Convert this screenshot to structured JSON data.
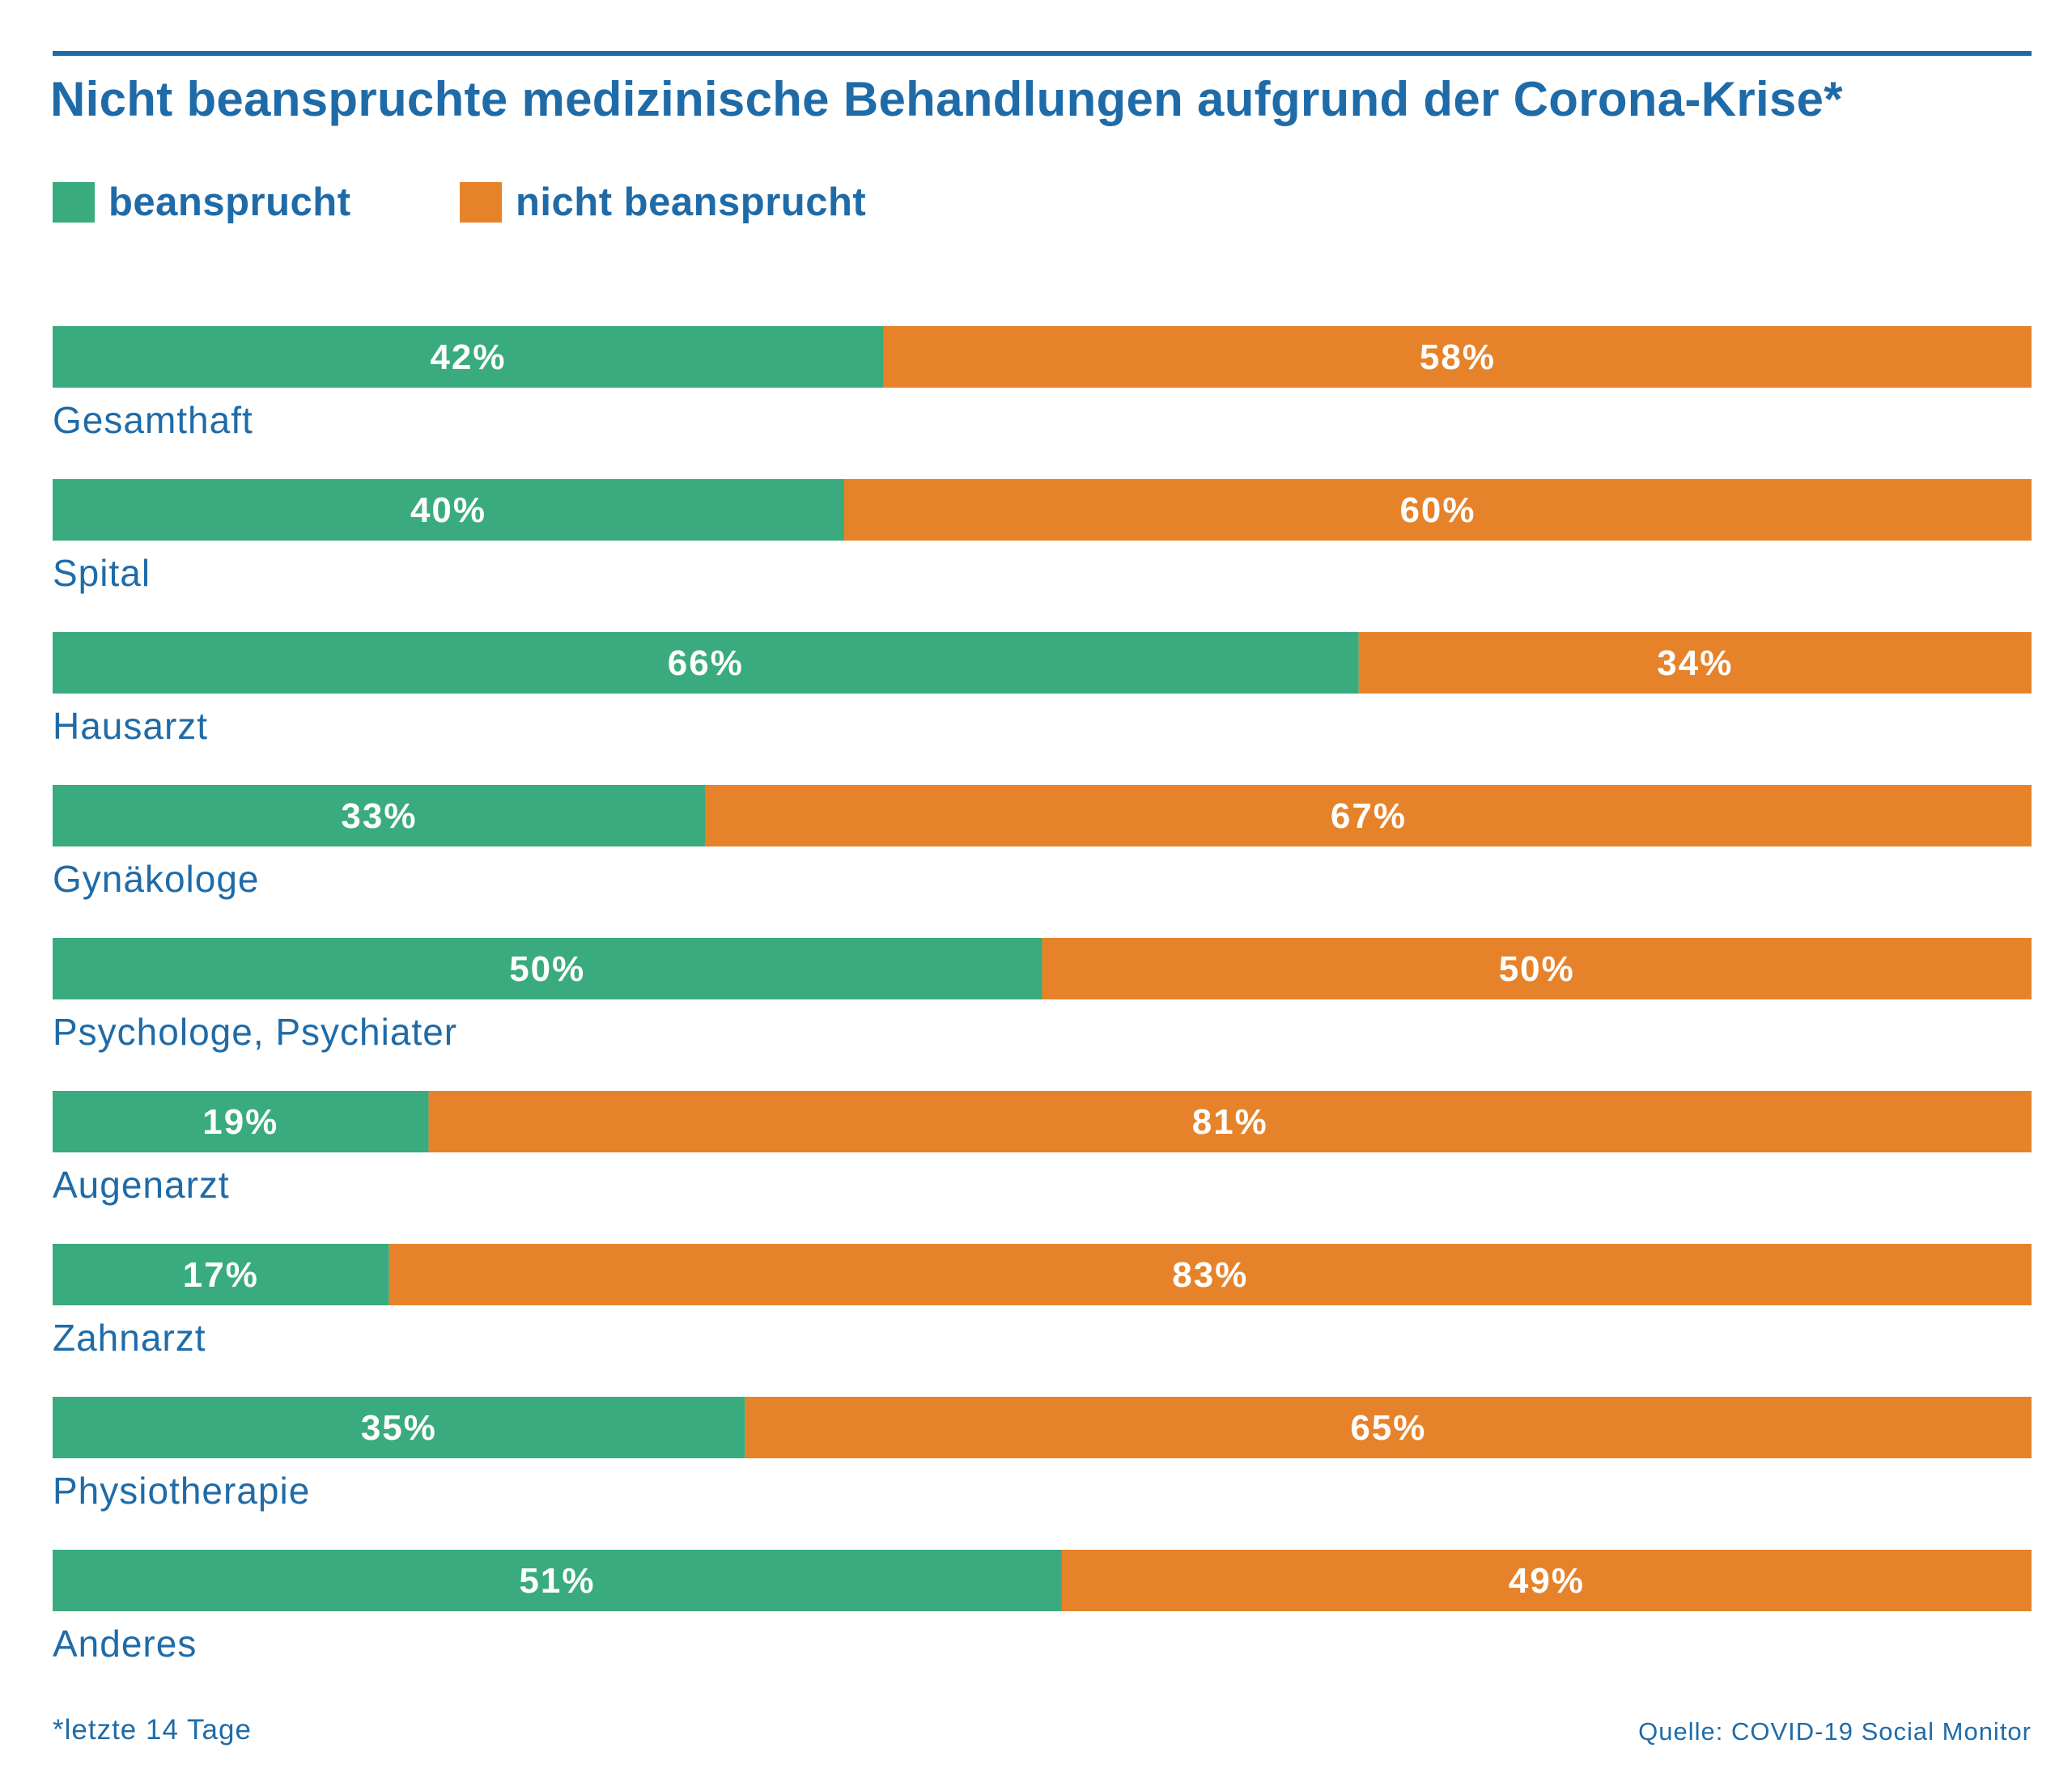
{
  "chart_data": {
    "type": "bar",
    "orientation": "horizontal",
    "stacked": true,
    "title": "Nicht beanspruchte medizinische Behandlungen aufgrund der Corona-Krise*",
    "categories": [
      "Gesamthaft",
      "Spital",
      "Hausarzt",
      "Gynäkologe",
      "Psychologe, Psychiater",
      "Augenarzt",
      "Zahnarzt",
      "Physiotherapie",
      "Anderes"
    ],
    "series": [
      {
        "name": "beansprucht",
        "color": "#3aab7e",
        "values": [
          42,
          40,
          66,
          33,
          50,
          19,
          17,
          35,
          51
        ],
        "labels": [
          "42%",
          "40%",
          "66%",
          "33%",
          "50%",
          "19%",
          "17%",
          "35%",
          "51%"
        ]
      },
      {
        "name": "nicht beansprucht",
        "color": "#e6832a",
        "values": [
          58,
          60,
          34,
          67,
          50,
          81,
          83,
          65,
          49
        ],
        "labels": [
          "58%",
          "60%",
          "34%",
          "67%",
          "50%",
          "81%",
          "83%",
          "65%",
          "49%"
        ]
      }
    ],
    "xlim": [
      0,
      100
    ],
    "legend_position": "top-left",
    "grid": false
  },
  "footnote": "*letzte 14 Tage",
  "source": "Quelle: COVID-19 Social Monitor",
  "colors": {
    "accent": "#1f6ba8",
    "label_text": "#ffffff"
  }
}
